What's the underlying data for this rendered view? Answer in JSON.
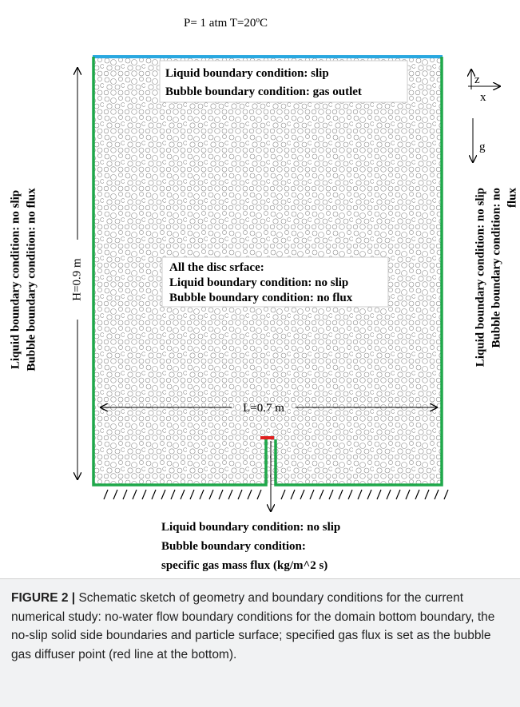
{
  "header": {
    "conditions": "P= 1 atm  T=20ºC"
  },
  "top_box": {
    "line1": "Liquid boundary condition:  slip",
    "line2": "Bubble boundary condition: gas outlet"
  },
  "center_box": {
    "line1": "All the disc srface:",
    "line2": "Liquid boundary condition: no slip",
    "line3": "Bubble boundary condition: no flux"
  },
  "axes": {
    "z": "z",
    "x": "x",
    "g": "g"
  },
  "height_label": "H=0.9 m",
  "length_label": "L=0.7 m",
  "left_side": {
    "line1": "Liquid boundary condition: no slip",
    "line2": "Bubble boundary condition: no flux"
  },
  "right_side": {
    "line1": "Liquid boundary condition: no slip",
    "line2": "Bubble boundary condition: no",
    "line3": "flux"
  },
  "bottom": {
    "line1": "Liquid boundary condition: no slip",
    "line2": "Bubble boundary condition:",
    "line3": "specific gas mass flux (kg/m^2 s)"
  },
  "caption": {
    "label": "FIGURE 2 |",
    "text": "Schematic sketch of geometry and boundary conditions for the current numerical study: no-water flow boundary conditions for the domain bottom boundary, the no-slip solid side boundaries and particle surface; specified gas flux is set as the bubble gas diffuser point (red line at the bottom)."
  }
}
